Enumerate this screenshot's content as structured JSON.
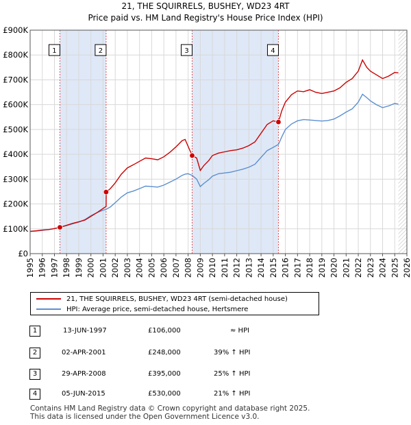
{
  "chart_data": {
    "type": "line",
    "title": "21, THE SQUIRRELS, BUSHEY, WD23 4RT",
    "subtitle": "Price paid vs. HM Land Registry's House Price Index (HPI)",
    "xlim": [
      1995,
      2026
    ],
    "ylim": [
      0,
      900000
    ],
    "x_ticks": [
      "1995",
      "1996",
      "1997",
      "1998",
      "1999",
      "2000",
      "2001",
      "2002",
      "2003",
      "2004",
      "2005",
      "2006",
      "2007",
      "2008",
      "2009",
      "2010",
      "2011",
      "2012",
      "2013",
      "2014",
      "2015",
      "2016",
      "2017",
      "2018",
      "2019",
      "2020",
      "2021",
      "2022",
      "2023",
      "2024",
      "2025",
      "2026"
    ],
    "y_ticks": [
      {
        "value": 0,
        "label": "£0"
      },
      {
        "value": 100000,
        "label": "£100K"
      },
      {
        "value": 200000,
        "label": "£200K"
      },
      {
        "value": 300000,
        "label": "£300K"
      },
      {
        "value": 400000,
        "label": "£400K"
      },
      {
        "value": 500000,
        "label": "£500K"
      },
      {
        "value": 600000,
        "label": "£600K"
      },
      {
        "value": 700000,
        "label": "£700K"
      },
      {
        "value": 800000,
        "label": "£800K"
      },
      {
        "value": 900000,
        "label": "£900K"
      }
    ],
    "hatch_from": 2025.3,
    "series": [
      {
        "name": "21, THE SQUIRRELS, BUSHEY, WD23 4RT (semi-detached house)",
        "color": "#cc0000",
        "points": [
          [
            1995.0,
            90000
          ],
          [
            1995.5,
            92000
          ],
          [
            1996.0,
            95000
          ],
          [
            1996.5,
            97000
          ],
          [
            1997.0,
            101000
          ],
          [
            1997.45,
            106000
          ],
          [
            1998.0,
            114000
          ],
          [
            1998.5,
            122000
          ],
          [
            1999.0,
            128000
          ],
          [
            1999.5,
            135000
          ],
          [
            2000.0,
            150000
          ],
          [
            2000.5,
            165000
          ],
          [
            2001.0,
            182000
          ],
          [
            2001.25,
            190000
          ],
          [
            2001.26,
            248000
          ],
          [
            2001.6,
            262000
          ],
          [
            2002.0,
            285000
          ],
          [
            2002.5,
            320000
          ],
          [
            2003.0,
            345000
          ],
          [
            2003.5,
            358000
          ],
          [
            2004.0,
            372000
          ],
          [
            2004.5,
            385000
          ],
          [
            2005.0,
            382000
          ],
          [
            2005.5,
            378000
          ],
          [
            2006.0,
            390000
          ],
          [
            2006.5,
            408000
          ],
          [
            2007.0,
            430000
          ],
          [
            2007.5,
            455000
          ],
          [
            2007.75,
            460000
          ],
          [
            2008.0,
            432000
          ],
          [
            2008.33,
            395000
          ],
          [
            2008.7,
            385000
          ],
          [
            2009.0,
            335000
          ],
          [
            2009.3,
            355000
          ],
          [
            2009.7,
            375000
          ],
          [
            2010.0,
            395000
          ],
          [
            2010.5,
            405000
          ],
          [
            2011.0,
            410000
          ],
          [
            2011.5,
            415000
          ],
          [
            2012.0,
            418000
          ],
          [
            2012.5,
            425000
          ],
          [
            2013.0,
            435000
          ],
          [
            2013.5,
            450000
          ],
          [
            2014.0,
            485000
          ],
          [
            2014.5,
            520000
          ],
          [
            2015.0,
            535000
          ],
          [
            2015.43,
            530000
          ],
          [
            2015.7,
            575000
          ],
          [
            2016.0,
            610000
          ],
          [
            2016.5,
            640000
          ],
          [
            2017.0,
            655000
          ],
          [
            2017.5,
            652000
          ],
          [
            2018.0,
            660000
          ],
          [
            2018.5,
            650000
          ],
          [
            2019.0,
            645000
          ],
          [
            2019.5,
            650000
          ],
          [
            2020.0,
            655000
          ],
          [
            2020.5,
            668000
          ],
          [
            2021.0,
            690000
          ],
          [
            2021.5,
            705000
          ],
          [
            2022.0,
            735000
          ],
          [
            2022.35,
            780000
          ],
          [
            2022.7,
            750000
          ],
          [
            2023.0,
            735000
          ],
          [
            2023.5,
            720000
          ],
          [
            2024.0,
            705000
          ],
          [
            2024.5,
            715000
          ],
          [
            2025.0,
            730000
          ],
          [
            2025.3,
            728000
          ]
        ]
      },
      {
        "name": "HPI: Average price, semi-detached house, Hertsmere",
        "color": "#5b8fd0",
        "points": [
          [
            1995.0,
            89000
          ],
          [
            1995.5,
            91000
          ],
          [
            1996.0,
            94000
          ],
          [
            1996.5,
            97000
          ],
          [
            1997.0,
            101000
          ],
          [
            1997.45,
            106000
          ],
          [
            1998.0,
            113000
          ],
          [
            1998.5,
            120000
          ],
          [
            1999.0,
            127000
          ],
          [
            1999.5,
            137000
          ],
          [
            2000.0,
            153000
          ],
          [
            2000.5,
            165000
          ],
          [
            2001.0,
            175000
          ],
          [
            2001.25,
            178000
          ],
          [
            2001.6,
            188000
          ],
          [
            2002.0,
            205000
          ],
          [
            2002.5,
            228000
          ],
          [
            2003.0,
            245000
          ],
          [
            2003.5,
            252000
          ],
          [
            2004.0,
            262000
          ],
          [
            2004.5,
            272000
          ],
          [
            2005.0,
            270000
          ],
          [
            2005.5,
            268000
          ],
          [
            2006.0,
            276000
          ],
          [
            2006.5,
            288000
          ],
          [
            2007.0,
            300000
          ],
          [
            2007.5,
            315000
          ],
          [
            2007.75,
            320000
          ],
          [
            2008.0,
            322000
          ],
          [
            2008.33,
            315000
          ],
          [
            2008.7,
            300000
          ],
          [
            2009.0,
            270000
          ],
          [
            2009.3,
            283000
          ],
          [
            2009.7,
            298000
          ],
          [
            2010.0,
            312000
          ],
          [
            2010.5,
            322000
          ],
          [
            2011.0,
            325000
          ],
          [
            2011.5,
            328000
          ],
          [
            2012.0,
            334000
          ],
          [
            2012.5,
            340000
          ],
          [
            2013.0,
            348000
          ],
          [
            2013.5,
            360000
          ],
          [
            2014.0,
            388000
          ],
          [
            2014.5,
            415000
          ],
          [
            2015.0,
            428000
          ],
          [
            2015.43,
            440000
          ],
          [
            2015.7,
            470000
          ],
          [
            2016.0,
            500000
          ],
          [
            2016.5,
            522000
          ],
          [
            2017.0,
            535000
          ],
          [
            2017.5,
            540000
          ],
          [
            2018.0,
            538000
          ],
          [
            2018.5,
            536000
          ],
          [
            2019.0,
            534000
          ],
          [
            2019.5,
            536000
          ],
          [
            2020.0,
            542000
          ],
          [
            2020.5,
            555000
          ],
          [
            2021.0,
            570000
          ],
          [
            2021.5,
            583000
          ],
          [
            2022.0,
            610000
          ],
          [
            2022.35,
            642000
          ],
          [
            2022.7,
            628000
          ],
          [
            2023.0,
            615000
          ],
          [
            2023.5,
            600000
          ],
          [
            2024.0,
            588000
          ],
          [
            2024.5,
            595000
          ],
          [
            2025.0,
            605000
          ],
          [
            2025.3,
            602000
          ]
        ]
      }
    ],
    "sales": [
      {
        "num": "1",
        "x": 1997.45,
        "price": 106000
      },
      {
        "num": "2",
        "x": 2001.25,
        "price": 248000
      },
      {
        "num": "3",
        "x": 2008.33,
        "price": 395000
      },
      {
        "num": "4",
        "x": 2015.43,
        "price": 530000
      }
    ]
  },
  "legend": [
    {
      "label": "21, THE SQUIRRELS, BUSHEY, WD23 4RT (semi-detached house)",
      "color": "#cc0000"
    },
    {
      "label": "HPI: Average price, semi-detached house, Hertsmere",
      "color": "#5b8fd0"
    }
  ],
  "transactions": [
    {
      "num": "1",
      "date": "13-JUN-1997",
      "price": "£106,000",
      "hpi": "≈ HPI"
    },
    {
      "num": "2",
      "date": "02-APR-2001",
      "price": "£248,000",
      "hpi": "39% ↑ HPI"
    },
    {
      "num": "3",
      "date": "29-APR-2008",
      "price": "£395,000",
      "hpi": "25% ↑ HPI"
    },
    {
      "num": "4",
      "date": "05-JUN-2015",
      "price": "£530,000",
      "hpi": "21% ↑ HPI"
    }
  ],
  "footer": {
    "line1": "Contains HM Land Registry data © Crown copyright and database right 2025.",
    "line2": "This data is licensed under the Open Government Licence v3.0."
  }
}
